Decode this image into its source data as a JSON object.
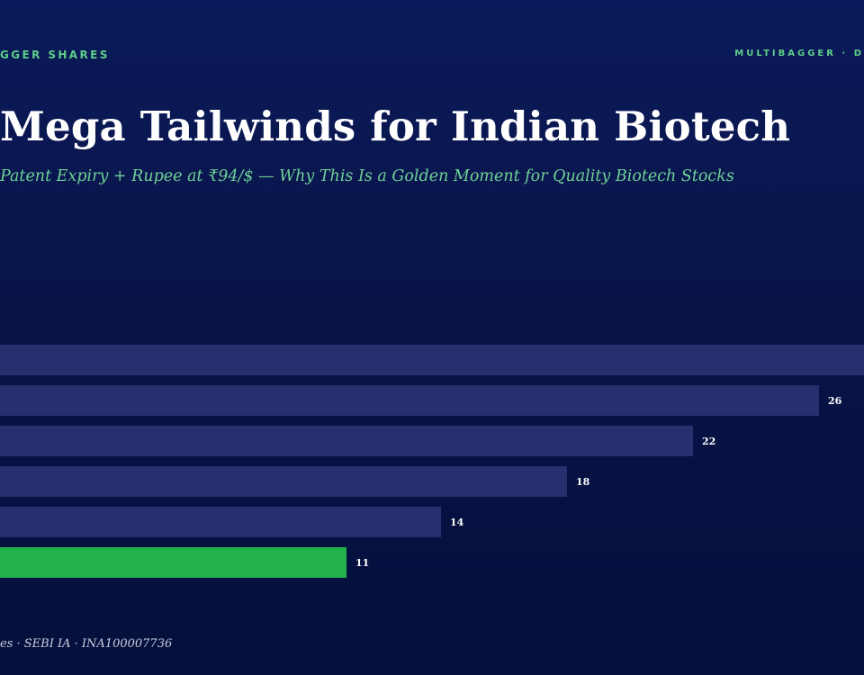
{
  "header": {
    "left_label": "GGER SHARES",
    "right_label": "MULTIBAGGER · D"
  },
  "title": "Mega Tailwinds for Indian Biotech",
  "subtitle": "Patent Expiry + Rupee at ₹94/$ — Why This Is a Golden Moment for Quality Biotech Stocks",
  "footer": "es · SEBI IA · INA100007736",
  "colors": {
    "bar_default": "#27306e",
    "bar_highlight": "#22b14c",
    "label": "#ffffff"
  },
  "chart_data": {
    "type": "bar",
    "orientation": "horizontal",
    "values": [
      30,
      26,
      22,
      18,
      14,
      11
    ],
    "labels": [
      "",
      "26",
      "22",
      "18",
      "14",
      "11"
    ],
    "highlight_index": 5
  }
}
